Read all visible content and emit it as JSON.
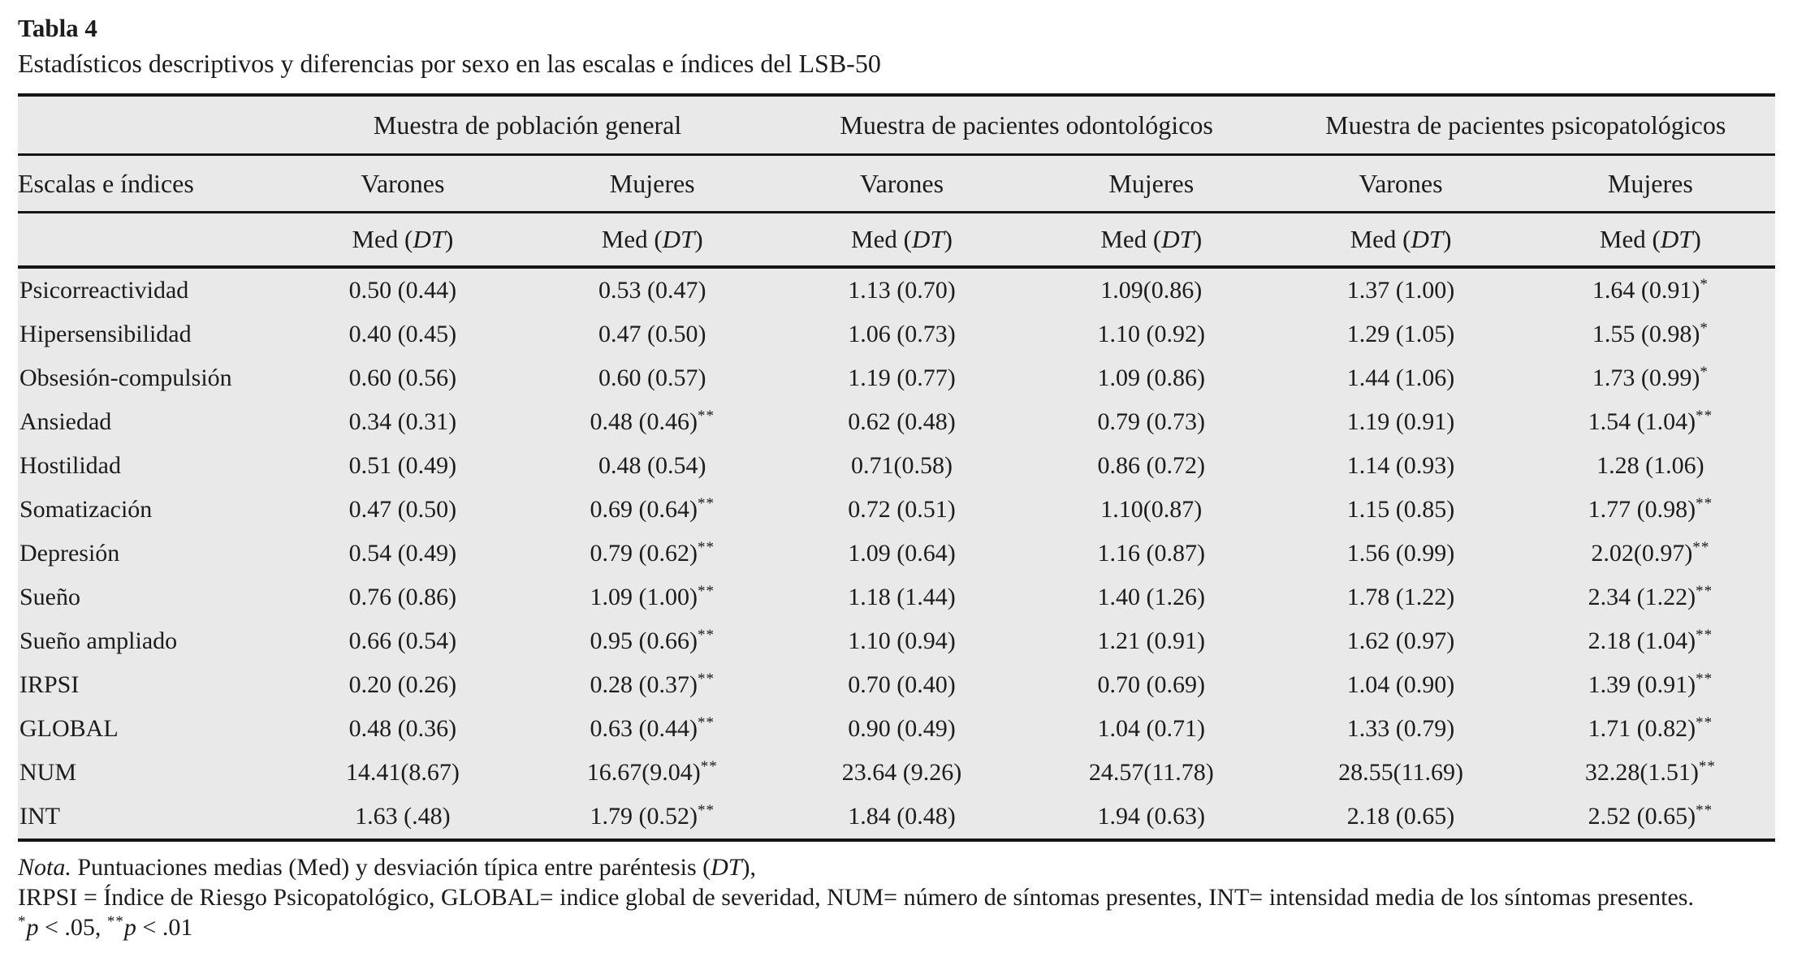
{
  "title": "Tabla 4",
  "subtitle": "Estadísticos descriptivos y diferencias por sexo en las escalas e índices del LSB-50",
  "table": {
    "row_header": "Escalas e índices",
    "groups": [
      "Muestra de población general",
      "Muestra de pacientes odontológicos",
      "Muestra de pacientes psicopatológicos"
    ],
    "sex_headers": [
      "Varones",
      "Mujeres",
      "Varones",
      "Mujeres",
      "Varones",
      "Mujeres"
    ],
    "measure_header": {
      "pre": "Med (",
      "dt": "DT",
      "post": ")"
    },
    "rows": [
      {
        "label": "Psicorreactividad",
        "cells": [
          {
            "v": "0.50 (0.44)",
            "s": ""
          },
          {
            "v": "0.53 (0.47)",
            "s": ""
          },
          {
            "v": "1.13 (0.70)",
            "s": ""
          },
          {
            "v": "1.09(0.86)",
            "s": ""
          },
          {
            "v": "1.37 (1.00)",
            "s": ""
          },
          {
            "v": "1.64 (0.91)",
            "s": "*"
          }
        ]
      },
      {
        "label": "Hipersensibilidad",
        "cells": [
          {
            "v": "0.40 (0.45)",
            "s": ""
          },
          {
            "v": "0.47 (0.50)",
            "s": ""
          },
          {
            "v": "1.06 (0.73)",
            "s": ""
          },
          {
            "v": "1.10 (0.92)",
            "s": ""
          },
          {
            "v": "1.29 (1.05)",
            "s": ""
          },
          {
            "v": "1.55 (0.98)",
            "s": "*"
          }
        ]
      },
      {
        "label": "Obsesión-compulsión",
        "cells": [
          {
            "v": "0.60 (0.56)",
            "s": ""
          },
          {
            "v": "0.60 (0.57)",
            "s": ""
          },
          {
            "v": "1.19 (0.77)",
            "s": ""
          },
          {
            "v": "1.09 (0.86)",
            "s": ""
          },
          {
            "v": "1.44 (1.06)",
            "s": ""
          },
          {
            "v": "1.73 (0.99)",
            "s": "*"
          }
        ]
      },
      {
        "label": "Ansiedad",
        "cells": [
          {
            "v": "0.34 (0.31)",
            "s": ""
          },
          {
            "v": "0.48 (0.46)",
            "s": "**"
          },
          {
            "v": "0.62 (0.48)",
            "s": ""
          },
          {
            "v": "0.79 (0.73)",
            "s": ""
          },
          {
            "v": "1.19 (0.91)",
            "s": ""
          },
          {
            "v": "1.54 (1.04)",
            "s": "**"
          }
        ]
      },
      {
        "label": "Hostilidad",
        "cells": [
          {
            "v": "0.51 (0.49)",
            "s": ""
          },
          {
            "v": "0.48 (0.54)",
            "s": ""
          },
          {
            "v": "0.71(0.58)",
            "s": ""
          },
          {
            "v": "0.86 (0.72)",
            "s": ""
          },
          {
            "v": "1.14 (0.93)",
            "s": ""
          },
          {
            "v": "1.28 (1.06)",
            "s": ""
          }
        ]
      },
      {
        "label": "Somatización",
        "cells": [
          {
            "v": "0.47 (0.50)",
            "s": ""
          },
          {
            "v": "0.69 (0.64)",
            "s": "**"
          },
          {
            "v": "0.72 (0.51)",
            "s": ""
          },
          {
            "v": "1.10(0.87)",
            "s": ""
          },
          {
            "v": "1.15 (0.85)",
            "s": ""
          },
          {
            "v": "1.77 (0.98)",
            "s": "**"
          }
        ]
      },
      {
        "label": "Depresión",
        "cells": [
          {
            "v": "0.54 (0.49)",
            "s": ""
          },
          {
            "v": "0.79 (0.62)",
            "s": "**"
          },
          {
            "v": "1.09 (0.64)",
            "s": ""
          },
          {
            "v": "1.16 (0.87)",
            "s": ""
          },
          {
            "v": "1.56 (0.99)",
            "s": ""
          },
          {
            "v": "2.02(0.97)",
            "s": "**"
          }
        ]
      },
      {
        "label": "Sueño",
        "cells": [
          {
            "v": "0.76 (0.86)",
            "s": ""
          },
          {
            "v": "1.09 (1.00)",
            "s": "**"
          },
          {
            "v": "1.18 (1.44)",
            "s": ""
          },
          {
            "v": "1.40 (1.26)",
            "s": ""
          },
          {
            "v": "1.78 (1.22)",
            "s": ""
          },
          {
            "v": "2.34 (1.22)",
            "s": "**"
          }
        ]
      },
      {
        "label": "Sueño ampliado",
        "cells": [
          {
            "v": "0.66 (0.54)",
            "s": ""
          },
          {
            "v": "0.95 (0.66)",
            "s": "**"
          },
          {
            "v": "1.10 (0.94)",
            "s": ""
          },
          {
            "v": "1.21 (0.91)",
            "s": ""
          },
          {
            "v": "1.62 (0.97)",
            "s": ""
          },
          {
            "v": "2.18 (1.04)",
            "s": "**"
          }
        ]
      },
      {
        "label": "IRPSI",
        "cells": [
          {
            "v": "0.20 (0.26)",
            "s": ""
          },
          {
            "v": "0.28 (0.37)",
            "s": "**"
          },
          {
            "v": "0.70 (0.40)",
            "s": ""
          },
          {
            "v": "0.70 (0.69)",
            "s": ""
          },
          {
            "v": "1.04 (0.90)",
            "s": ""
          },
          {
            "v": "1.39 (0.91)",
            "s": "**"
          }
        ]
      },
      {
        "label": "GLOBAL",
        "cells": [
          {
            "v": "0.48 (0.36)",
            "s": ""
          },
          {
            "v": "0.63 (0.44)",
            "s": "**"
          },
          {
            "v": "0.90 (0.49)",
            "s": ""
          },
          {
            "v": "1.04 (0.71)",
            "s": ""
          },
          {
            "v": "1.33 (0.79)",
            "s": ""
          },
          {
            "v": "1.71 (0.82)",
            "s": "**"
          }
        ]
      },
      {
        "label": "NUM",
        "cells": [
          {
            "v": "14.41(8.67)",
            "s": ""
          },
          {
            "v": "16.67(9.04)",
            "s": "**"
          },
          {
            "v": "23.64 (9.26)",
            "s": ""
          },
          {
            "v": "24.57(11.78)",
            "s": ""
          },
          {
            "v": "28.55(11.69)",
            "s": ""
          },
          {
            "v": "32.28(1.51)",
            "s": "**"
          }
        ]
      },
      {
        "label": "INT",
        "cells": [
          {
            "v": "1.63 (.48)",
            "s": ""
          },
          {
            "v": "1.79 (0.52)",
            "s": "**"
          },
          {
            "v": "1.84 (0.48)",
            "s": ""
          },
          {
            "v": "1.94 (0.63)",
            "s": ""
          },
          {
            "v": "2.18 (0.65)",
            "s": ""
          },
          {
            "v": "2.52 (0.65)",
            "s": "**"
          }
        ]
      }
    ]
  },
  "notes": {
    "line1_nota": "Nota.",
    "line1_text": " Puntuaciones medias (Med) y desviación típica entre paréntesis (",
    "line1_dt": "DT",
    "line1_end": "),",
    "line2": "IRPSI = Índice de Riesgo Psicopatológico, GLOBAL= indice global de severidad, NUM= número de síntomas presentes, INT= intensidad media de los síntomas presentes.",
    "line3_star1": "*",
    "line3_p1": "p",
    "line3_mid": " < .05, ",
    "line3_star2": "**",
    "line3_p2": "p",
    "line3_end": " < .01"
  },
  "colors": {
    "page_bg": "#ffffff",
    "table_bg": "#e9e9e9",
    "rule": "#161616",
    "text": "#1c1c1c"
  }
}
